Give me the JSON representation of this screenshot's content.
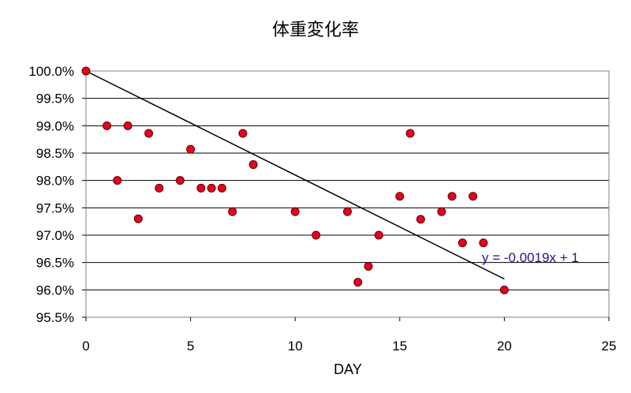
{
  "chart_data": {
    "type": "scatter",
    "title": "体重変化率",
    "xlabel": "DAY",
    "ylabel": "",
    "xlim": [
      0,
      25
    ],
    "ylim": [
      0.955,
      1.0
    ],
    "x_ticks": [
      0,
      5,
      10,
      15,
      20,
      25
    ],
    "x_tick_labels": [
      "0",
      "5",
      "10",
      "15",
      "20",
      "25"
    ],
    "y_ticks": [
      0.955,
      0.96,
      0.965,
      0.97,
      0.975,
      0.98,
      0.985,
      0.99,
      0.995,
      1.0
    ],
    "y_tick_labels": [
      "95.5%",
      "96.0%",
      "96.5%",
      "97.0%",
      "97.5%",
      "98.0%",
      "98.5%",
      "99.0%",
      "99.5%",
      "100.0%"
    ],
    "grid": "horizontal",
    "series": [
      {
        "points": [
          [
            0,
            1.0
          ],
          [
            1,
            0.99
          ],
          [
            1.5,
            0.98
          ],
          [
            2,
            0.99
          ],
          [
            2.5,
            0.973
          ],
          [
            3,
            0.9886
          ],
          [
            3.5,
            0.9786
          ],
          [
            4.5,
            0.98
          ],
          [
            5,
            0.9857
          ],
          [
            5.5,
            0.9786
          ],
          [
            6,
            0.9786
          ],
          [
            6.5,
            0.9786
          ],
          [
            7,
            0.9743
          ],
          [
            7.5,
            0.9886
          ],
          [
            8,
            0.9829
          ],
          [
            10,
            0.9743
          ],
          [
            11,
            0.97
          ],
          [
            12.5,
            0.9743
          ],
          [
            13,
            0.9614
          ],
          [
            13.5,
            0.9643
          ],
          [
            14,
            0.97
          ],
          [
            15,
            0.9771
          ],
          [
            15.5,
            0.9886
          ],
          [
            16,
            0.9729
          ],
          [
            17,
            0.9743
          ],
          [
            17.5,
            0.9771
          ],
          [
            18,
            0.9686
          ],
          [
            18.5,
            0.9771
          ],
          [
            19,
            0.9686
          ],
          [
            20,
            0.96
          ]
        ],
        "color": "#e8001c"
      }
    ],
    "trendline": {
      "slope": -0.0019,
      "intercept": 1,
      "x_range": [
        0,
        20
      ],
      "label": "y = -0.0019x + 1",
      "color": "#000000"
    }
  }
}
